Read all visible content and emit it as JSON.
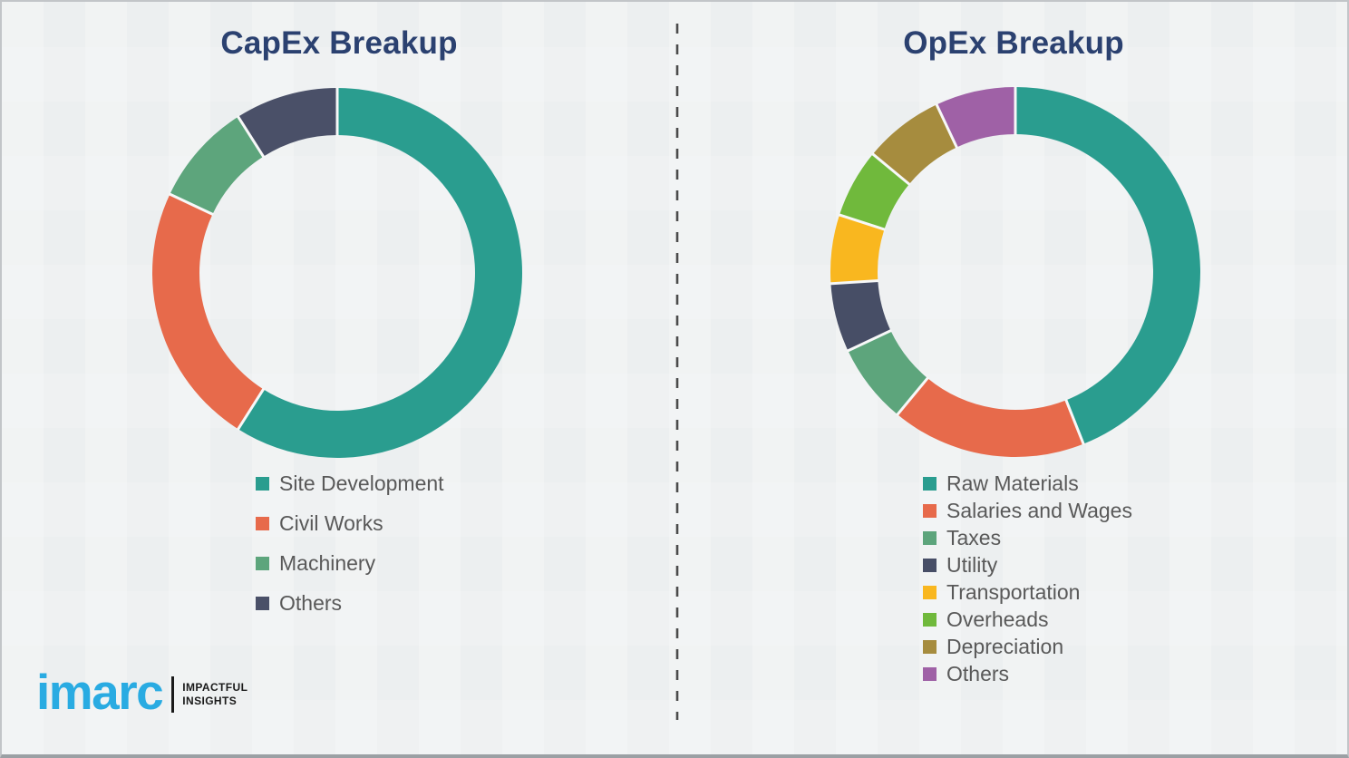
{
  "page": {
    "background_color": "#eff1f2",
    "divider_color": "#4b4b4b",
    "title_color": "#2b4170",
    "legend_text_color": "#595959",
    "segment_gap_color": "#f7f8f8"
  },
  "chart_data": [
    {
      "type": "pie",
      "subtype": "donut",
      "title": "CapEx Breakup",
      "legend_position": "below-left",
      "labels": [
        "Site Development",
        "Civil Works",
        "Machinery",
        "Others"
      ],
      "values_pct_estimated": [
        59,
        23,
        9,
        9
      ],
      "colors": [
        "#2A9D8F",
        "#E76A4B",
        "#5DA57C",
        "#4A5068"
      ]
    },
    {
      "type": "pie",
      "subtype": "donut",
      "title": "OpEx Breakup",
      "legend_position": "below-left",
      "labels": [
        "Raw Materials",
        "Salaries and Wages",
        "Taxes",
        "Utility",
        "Transportation",
        "Overheads",
        "Depreciation",
        "Others"
      ],
      "values_pct_estimated": [
        44,
        17,
        7,
        6,
        6,
        6,
        7,
        7
      ],
      "colors": [
        "#2A9D8F",
        "#E76A4B",
        "#5DA57C",
        "#474E66",
        "#F9B71F",
        "#70B93C",
        "#A68C3E",
        "#9F61A6"
      ]
    }
  ],
  "logo": {
    "brand": "imarc",
    "brand_color": "#29ABE2",
    "tagline_line1": "IMPACTFUL",
    "tagline_line2": "INSIGHTS"
  }
}
